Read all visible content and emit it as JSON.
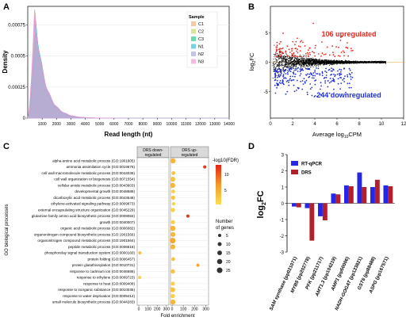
{
  "chart_data": [
    {
      "panel": "A",
      "type": "area",
      "xlabel": "Read length (nt)",
      "ylabel": "Density",
      "xlim": [
        0,
        14000
      ],
      "ylim": [
        0,
        0.0009
      ],
      "xticks": [
        "1000",
        "2000",
        "3000",
        "4000",
        "5000",
        "6000",
        "7000",
        "8000",
        "9000",
        "10000",
        "11000",
        "12000",
        "13000",
        "14000"
      ],
      "yticks": [
        "0",
        "0.00025",
        "0.0005",
        "0.00075"
      ],
      "legend_title": "Sample",
      "legend_position": "top-right",
      "series": [
        {
          "name": "C1",
          "color": "#f4b183",
          "peak_x": 500,
          "peak_y": 0.00082
        },
        {
          "name": "C2",
          "color": "#c9d86b",
          "peak_x": 520,
          "peak_y": 0.00083
        },
        {
          "name": "C3",
          "color": "#2ecc8f",
          "peak_x": 600,
          "peak_y": 0.00074
        },
        {
          "name": "N1",
          "color": "#3fc1d9",
          "peak_x": 560,
          "peak_y": 0.00078
        },
        {
          "name": "N2",
          "color": "#a9a6ea",
          "peak_x": 480,
          "peak_y": 0.00084
        },
        {
          "name": "N3",
          "color": "#f29bd6",
          "peak_x": 460,
          "peak_y": 0.00086
        }
      ]
    },
    {
      "panel": "B",
      "type": "scatter",
      "xlabel": "Average log10CPM",
      "ylabel": "log2FC",
      "xlim": [
        0,
        12
      ],
      "ylim": [
        -9.5,
        9.5
      ],
      "xticks": [
        "0",
        "2",
        "4",
        "6",
        "8",
        "10",
        "12"
      ],
      "yticks": [
        "-5",
        "0",
        "5"
      ],
      "annotations": [
        {
          "text": "106 upregulated",
          "color": "#e8281e"
        },
        {
          "text": "244 downregulated",
          "color": "#1f2fd8"
        }
      ],
      "counts": {
        "up": 106,
        "down": 244
      }
    },
    {
      "panel": "C",
      "type": "scatter",
      "xlabel": "Fold enrichment",
      "ylabel": "GO biological processes",
      "facets": [
        "DRS down-\nregulated",
        "DRS up-\nregulated"
      ],
      "xticks": [
        "0",
        "100",
        "200",
        "300"
      ],
      "color_legend_title": "-log10(FDR)",
      "color_ticks": [
        "10",
        "5"
      ],
      "size_legend_title": "Number of genes",
      "size_values": [
        5,
        10,
        15,
        20,
        25
      ],
      "categories": [
        "alpha-amino acid metabolic process (GO:1901605)",
        "ammonia assimilation cycle (GO:0019676)",
        "cell wall macromolecule metabolic process (GO:0044036)",
        "cell wall organization or biogenesis (GO:0071554)",
        "cellular amide metabolic process (GO:0043603)",
        "developmental growth (GO:0048589)",
        "dicarboxylic acid metabolic process (GO:0043648)",
        "ethylene-activated signaling pathway (GO:0009873)",
        "external encapsulating structure organization (GO:0045229)",
        "glutamine family amino acid biosynthetic process (GO:0009084)",
        "growth (GO:0040007)",
        "organic acid metabolic process (GO:0006082)",
        "organonitrogen compound biosynthetic process (GO:1901566)",
        "organonitrogen compound metabolic process (GO:1901564)",
        "peptide metabolic process (GO:0006518)",
        "phosphorelay signal transduction system (GO:0000160)",
        "protein folding (GO:0006457)",
        "protein glutathionylation (GO:0010731)",
        "response to cadmium ion (GO:0046686)",
        "response to ethylene (GO:0009723)",
        "response to heat (GO:0009408)",
        "response to inorganic substance (GO:0010035)",
        "response to water deprivation (GO:0009414)",
        "small molecule biosynthetic process (GO:0044283)"
      ],
      "points": [
        {
          "facet": 1,
          "cat": 0,
          "x": 8,
          "size": 20,
          "fdr": 5
        },
        {
          "facet": 1,
          "cat": 1,
          "x": 290,
          "size": 5,
          "fdr": 11
        },
        {
          "facet": 1,
          "cat": 2,
          "x": 12,
          "size": 8,
          "fdr": 4
        },
        {
          "facet": 1,
          "cat": 3,
          "x": 6,
          "size": 18,
          "fdr": 4
        },
        {
          "facet": 1,
          "cat": 4,
          "x": 5,
          "size": 20,
          "fdr": 5
        },
        {
          "facet": 1,
          "cat": 5,
          "x": 10,
          "size": 8,
          "fdr": 3
        },
        {
          "facet": 1,
          "cat": 6,
          "x": 9,
          "size": 10,
          "fdr": 4
        },
        {
          "facet": 1,
          "cat": 7,
          "x": 14,
          "size": 6,
          "fdr": 3
        },
        {
          "facet": 1,
          "cat": 8,
          "x": 7,
          "size": 12,
          "fdr": 3
        },
        {
          "facet": 1,
          "cat": 9,
          "x": 140,
          "size": 5,
          "fdr": 11
        },
        {
          "facet": 1,
          "cat": 10,
          "x": 8,
          "size": 10,
          "fdr": 3
        },
        {
          "facet": 1,
          "cat": 11,
          "x": 6,
          "size": 22,
          "fdr": 5
        },
        {
          "facet": 1,
          "cat": 12,
          "x": 8,
          "size": 16,
          "fdr": 5
        },
        {
          "facet": 1,
          "cat": 13,
          "x": 5,
          "size": 25,
          "fdr": 6
        },
        {
          "facet": 1,
          "cat": 14,
          "x": 6,
          "size": 18,
          "fdr": 5
        },
        {
          "facet": 0,
          "cat": 15,
          "x": 12,
          "size": 5,
          "fdr": 4
        },
        {
          "facet": 1,
          "cat": 16,
          "x": 10,
          "size": 8,
          "fdr": 4
        },
        {
          "facet": 1,
          "cat": 17,
          "x": 230,
          "size": 5,
          "fdr": 6
        },
        {
          "facet": 1,
          "cat": 18,
          "x": 7,
          "size": 12,
          "fdr": 4
        },
        {
          "facet": 0,
          "cat": 19,
          "x": 10,
          "size": 5,
          "fdr": 3
        },
        {
          "facet": 1,
          "cat": 20,
          "x": 8,
          "size": 10,
          "fdr": 3
        },
        {
          "facet": 1,
          "cat": 21,
          "x": 5,
          "size": 18,
          "fdr": 4
        },
        {
          "facet": 1,
          "cat": 22,
          "x": 6,
          "size": 12,
          "fdr": 3
        },
        {
          "facet": 1,
          "cat": 23,
          "x": 7,
          "size": 20,
          "fdr": 5
        }
      ]
    },
    {
      "panel": "D",
      "type": "bar",
      "ylabel": "log2FC",
      "ylim": [
        -3,
        3
      ],
      "yticks": [
        "-3",
        "-2",
        "-1",
        "0",
        "1",
        "2",
        "3"
      ],
      "legend_position": "top-left",
      "categories": [
        "SAM synthase (pp021071)",
        "MYB5 (pp202778)",
        "PFK (pp211717)",
        "AMT1.3 (pp104219)",
        "AMP1 (pp50006)",
        "NADH-GOGAT (pp123821)",
        "GST6 (pp88488)",
        "ASPG (pp167571)"
      ],
      "series": [
        {
          "name": "RT-qPCR",
          "color": "#2626e6",
          "values": [
            -0.2,
            -0.3,
            -0.8,
            0.6,
            1.1,
            1.9,
            1.0,
            1.1
          ]
        },
        {
          "name": "DRS",
          "color": "#b31f2a",
          "values": [
            -0.25,
            -2.3,
            -1.05,
            0.55,
            1.05,
            1.0,
            1.45,
            1.05
          ]
        }
      ]
    }
  ],
  "labels": {
    "A": "A",
    "B": "B",
    "C": "C",
    "D": "D"
  }
}
